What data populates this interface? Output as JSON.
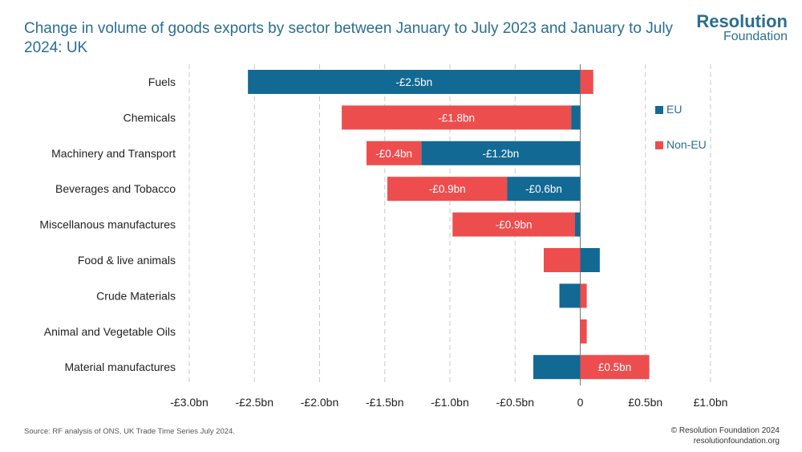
{
  "header": {
    "title": "Change in volume of goods exports by sector between January to July 2023 and January to July 2024: UK"
  },
  "logo": {
    "line1": "Resolution",
    "line2": "Foundation"
  },
  "footer": {
    "source": "Source: RF analysis of ONS, UK Trade Time Series July 2024.",
    "copyright": "© Resolution Foundation 2024",
    "website": "resolutionfoundation.org"
  },
  "colors": {
    "eu": "#126994",
    "non_eu": "#ee4d4e",
    "title": "#2b6e8f",
    "grid": "#c8c8c8"
  },
  "chart_data": {
    "type": "bar",
    "orientation": "horizontal",
    "stacked": true,
    "title": "Change in volume of goods exports by sector between January to July 2023 and January to July 2024: UK",
    "xlabel": "",
    "ylabel": "",
    "xlim": [
      -3.0,
      1.0
    ],
    "x_ticks": [
      -3.0,
      -2.5,
      -2.0,
      -1.5,
      -1.0,
      -0.5,
      0,
      0.5,
      1.0
    ],
    "x_tick_labels": [
      "-£3.0bn",
      "-£2.5bn",
      "-£2.0bn",
      "-£1.5bn",
      "-£1.0bn",
      "-£0.5bn",
      "0",
      "£0.5bn",
      "£1.0bn"
    ],
    "grid": "vertical dashed",
    "legend_position": "right",
    "categories": [
      "Fuels",
      "Chemicals",
      "Machinery and Transport",
      "Beverages and Tobacco",
      "Miscellanous manufactures",
      "Food & live animals",
      "Crude Materials",
      "Animal and Vegetable Oils",
      "Material manufactures"
    ],
    "series": [
      {
        "name": "EU",
        "color": "#126994",
        "values": [
          -2.55,
          -0.07,
          -1.22,
          -0.56,
          -0.04,
          0.15,
          -0.16,
          0.0,
          -0.36
        ],
        "data_labels": [
          "-£2.5bn",
          "",
          "-£1.2bn",
          "-£0.6bn",
          "",
          "",
          "",
          "",
          ""
        ]
      },
      {
        "name": "Non-EU",
        "color": "#ee4d4e",
        "values": [
          0.1,
          -1.76,
          -0.42,
          -0.92,
          -0.94,
          -0.28,
          0.05,
          0.05,
          0.53
        ],
        "data_labels": [
          "",
          "-£1.8bn",
          "-£0.4bn",
          "-£0.9bn",
          "-£0.9bn",
          "",
          "",
          "",
          "£0.5bn"
        ]
      }
    ]
  }
}
